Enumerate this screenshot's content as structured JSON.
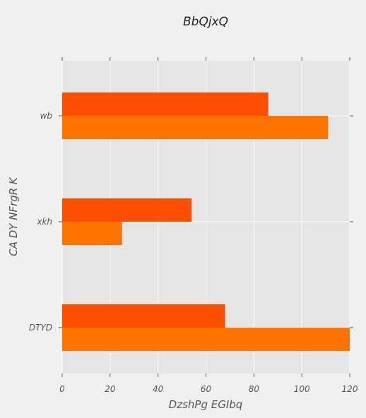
{
  "chart_data": {
    "type": "bar",
    "orientation": "horizontal",
    "title": "BbQjxQ",
    "xlabel": "DzshPg EGIbq",
    "ylabel": "CA DY NFrgR K",
    "categories": [
      "wb",
      "xkh",
      "DTYD"
    ],
    "series": [
      {
        "values": [
          86,
          54,
          68
        ],
        "color": "#fc4f00"
      },
      {
        "values": [
          111,
          25,
          120
        ],
        "color": "#ff7400"
      }
    ],
    "xlim": [
      0,
      120
    ],
    "xticks": [
      0,
      20,
      40,
      60,
      80,
      100,
      120
    ],
    "grid": true
  },
  "colors": {
    "plot_background": "#e5e5e5",
    "grid": "#ffffff",
    "page_background": "#f0f0f0"
  }
}
